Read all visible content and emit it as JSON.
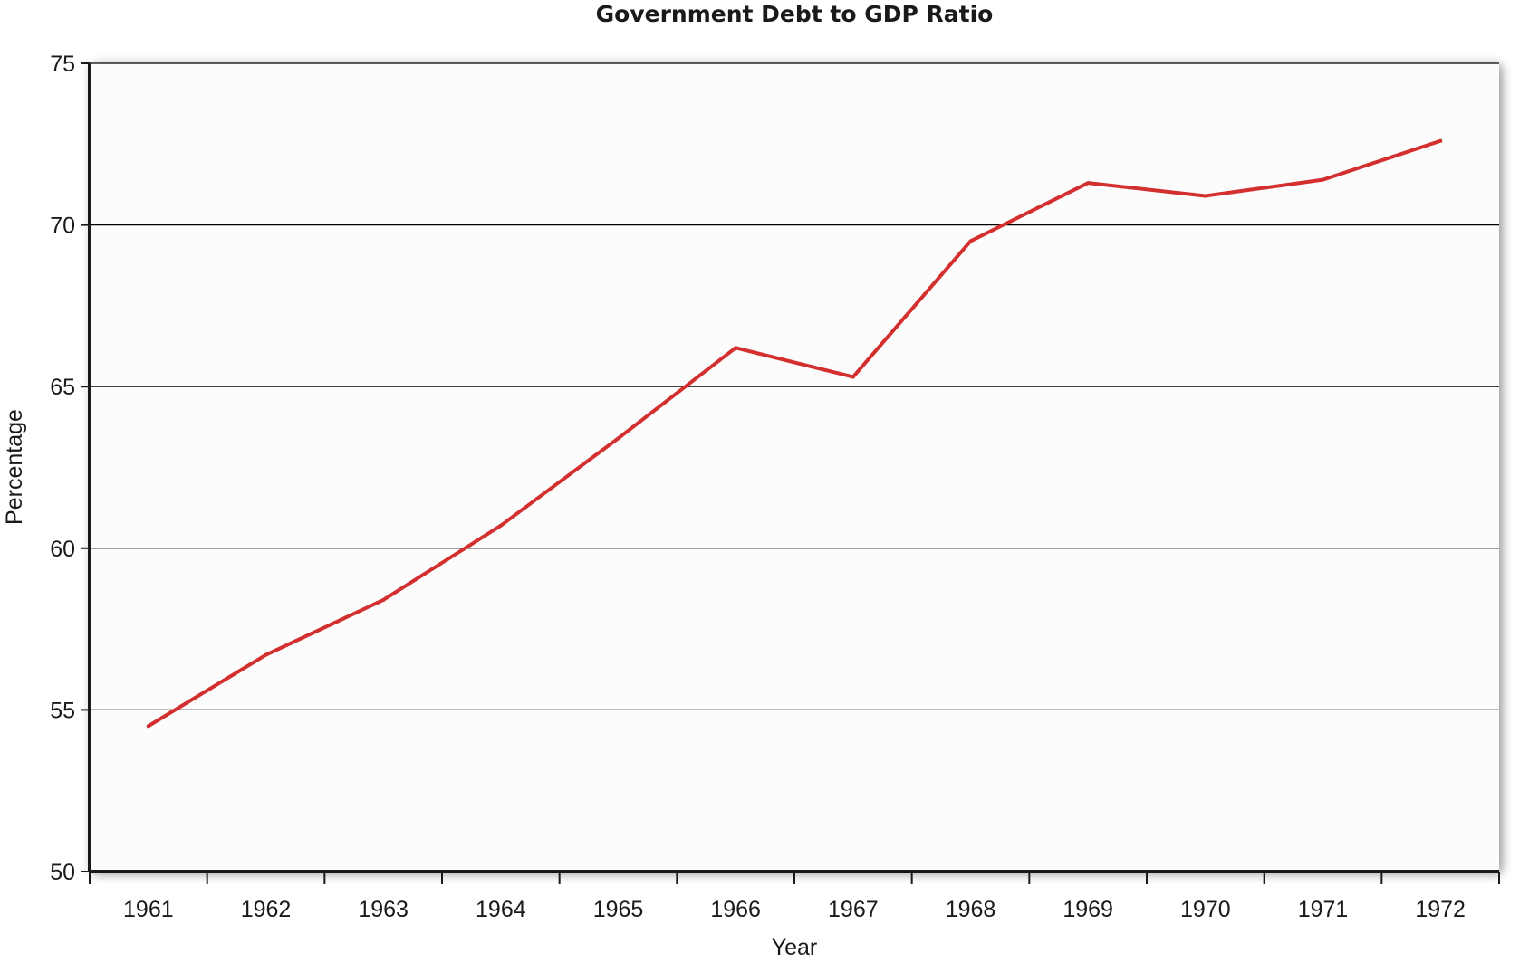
{
  "chart_data": {
    "type": "line",
    "title": "Government Debt to GDP Ratio",
    "xlabel": "Year",
    "ylabel": "Percentage",
    "categories": [
      "1961",
      "1962",
      "1963",
      "1964",
      "1965",
      "1966",
      "1967",
      "1968",
      "1969",
      "1970",
      "1971",
      "1972"
    ],
    "series": [
      {
        "values": [
          54.5,
          56.7,
          58.4,
          60.7,
          63.4,
          66.2,
          65.3,
          69.5,
          71.3,
          70.9,
          71.4,
          72.6
        ],
        "color": "#d32f2f"
      }
    ],
    "ylim": [
      50,
      75
    ],
    "yticks": [
      50,
      55,
      60,
      65,
      70,
      75
    ],
    "grid": true,
    "legend": "none"
  },
  "colors": {
    "plot_background": "#fcfcfc",
    "gridline": "#000000",
    "axis": "#1a1a1a"
  }
}
